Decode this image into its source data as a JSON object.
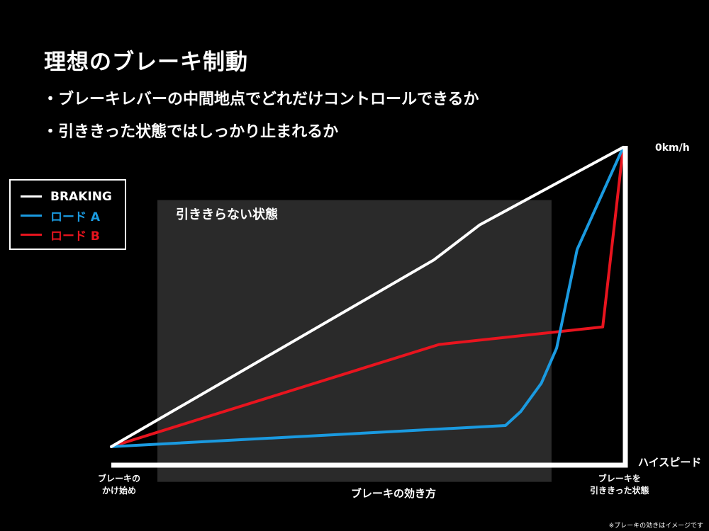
{
  "header": {
    "title": "理想のブレーキ制動",
    "bullets": [
      "・ブレーキレバーの中間地点でどれだけコントロールできるか",
      "・引ききった状態ではしっかり止まれるか"
    ]
  },
  "note": "※ブレーキの効きはイメージです",
  "chart_data": {
    "type": "line",
    "title": "理想のブレーキ制動",
    "xlabel": "ブレーキの効き方",
    "x_tick_labels": {
      "start": [
        "ブレーキの",
        "かけ始め"
      ],
      "end": [
        "ブレーキを",
        "引ききった状態"
      ]
    },
    "x_axis_end_label": "ハイスピード",
    "y_axis_top_label": "0km/h",
    "xlim": [
      0,
      100
    ],
    "ylim": [
      0,
      100
    ],
    "grid": false,
    "legend_placement": "left",
    "shaded_region": {
      "label": "引ききらない状態",
      "x": [
        9,
        86
      ],
      "y": [
        5,
        85
      ],
      "color": "#2a2a2a"
    },
    "series": [
      {
        "name": "BRAKING",
        "color": "#ffffff",
        "points": [
          [
            0,
            15
          ],
          [
            63,
            68
          ],
          [
            72,
            78
          ],
          [
            100,
            100
          ]
        ]
      },
      {
        "name": "ロード A",
        "color": "#1a9ae0",
        "points": [
          [
            0,
            15
          ],
          [
            77,
            21
          ],
          [
            80,
            25
          ],
          [
            84,
            33
          ],
          [
            87,
            43
          ],
          [
            91,
            71
          ],
          [
            100,
            100
          ]
        ]
      },
      {
        "name": "ロード B",
        "color": "#e8141e",
        "points": [
          [
            0,
            15
          ],
          [
            64,
            44
          ],
          [
            96,
            49
          ],
          [
            100,
            100
          ]
        ]
      }
    ]
  }
}
